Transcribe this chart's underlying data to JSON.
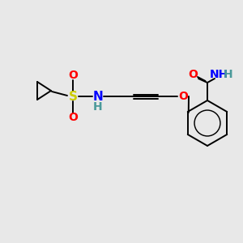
{
  "background_color": "#e8e8e8",
  "bond_color": "#000000",
  "atom_colors": {
    "O": "#ff0000",
    "N": "#0000ff",
    "S": "#cccc00",
    "H": "#4a9999",
    "C": "#000000"
  },
  "figsize": [
    3.0,
    3.0
  ],
  "dpi": 100
}
